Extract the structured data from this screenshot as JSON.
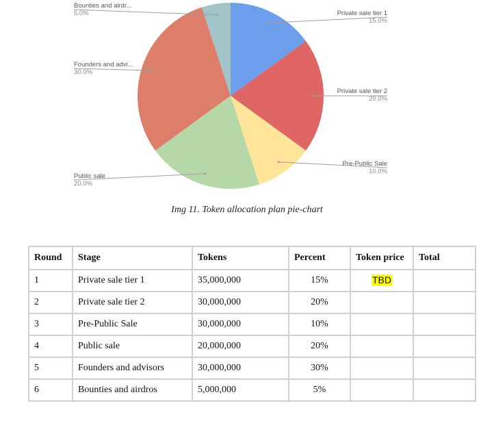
{
  "chart_data": {
    "type": "pie",
    "slices": [
      {
        "name": "Private sale tier 1",
        "label": "Private sale tier 1",
        "value": 15.0,
        "pct": "15.0%",
        "color": "#6d9eeb"
      },
      {
        "name": "Private sale tier 2",
        "label": "Private sale tier 2",
        "value": 20.0,
        "pct": "20.0%",
        "color": "#e06666"
      },
      {
        "name": "Pre-Public Sale",
        "label": "Pre-Public Sale",
        "value": 10.0,
        "pct": "10.0%",
        "color": "#ffe599"
      },
      {
        "name": "Public sale",
        "label": "Public sale",
        "value": 20.0,
        "pct": "20.0%",
        "color": "#b6d7a8"
      },
      {
        "name": "Founders and advisors",
        "label": "Founders and advi...",
        "value": 30.0,
        "pct": "30.0%",
        "color": "#dd7e6b"
      },
      {
        "name": "Bounties and airdros",
        "label": "Bounties and airdr...",
        "value": 5.0,
        "pct": "5.0%",
        "color": "#a2c4c9"
      }
    ]
  },
  "caption": "Img 11. Token allocation plan pie-chart",
  "table": {
    "headers": [
      "Round",
      "Stage",
      "Tokens",
      "Percent",
      "Token price",
      "Total"
    ],
    "rows": [
      {
        "round": "1",
        "stage": "Private sale tier 1",
        "tokens": "35,000,000",
        "percent": "15%",
        "price": "TBD",
        "total": ""
      },
      {
        "round": "2",
        "stage": "Private sale tier 2",
        "tokens": "30,000,000",
        "percent": "20%",
        "price": "",
        "total": ""
      },
      {
        "round": "3",
        "stage": "Pre-Public Sale",
        "tokens": "30,000,000",
        "percent": "10%",
        "price": "",
        "total": ""
      },
      {
        "round": "4",
        "stage": "Public sale",
        "tokens": "20,000,000",
        "percent": "20%",
        "price": "",
        "total": ""
      },
      {
        "round": "5",
        "stage": "Founders and advisors",
        "tokens": "30,000,000",
        "percent": "30%",
        "price": "",
        "total": ""
      },
      {
        "round": "6",
        "stage": "Bounties and airdros",
        "tokens": "5,000,000",
        "percent": "5%",
        "price": "",
        "total": ""
      }
    ]
  }
}
